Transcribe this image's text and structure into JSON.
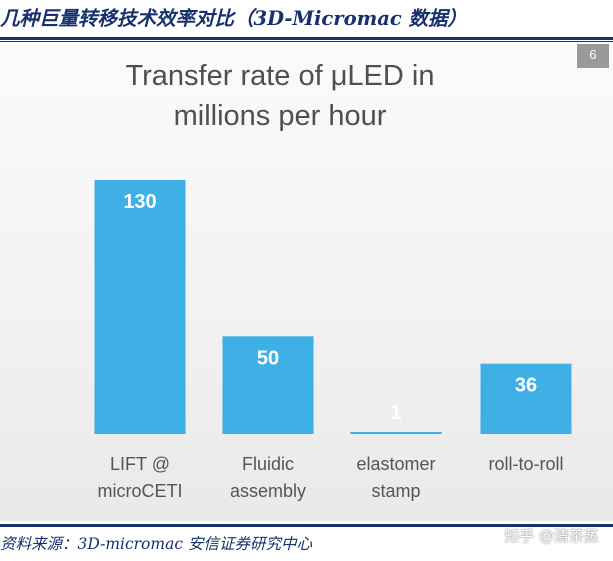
{
  "header": {
    "title": "几种巨量转移技术效率对比（3D-Micromac 数据）"
  },
  "slide": {
    "number": "6"
  },
  "chart_data": {
    "type": "bar",
    "title": "Transfer rate of μLED in\nmillions per hour",
    "categories": [
      "LIFT @\nmicroCETI",
      "Fluidic\nassembly",
      "elastomer\nstamp",
      "roll-to-roll"
    ],
    "values": [
      130,
      50,
      1,
      36
    ],
    "data_labels": [
      "130",
      "50",
      "1",
      "36"
    ],
    "bar_color": "#3fb0e6",
    "xlabel": "",
    "ylabel": "",
    "ylim": [
      0,
      130
    ],
    "grid": false
  },
  "footer": {
    "source": "资料来源：3D-micromac 安信证券研究中心",
    "watermark": "知乎 @清茶蒸"
  }
}
